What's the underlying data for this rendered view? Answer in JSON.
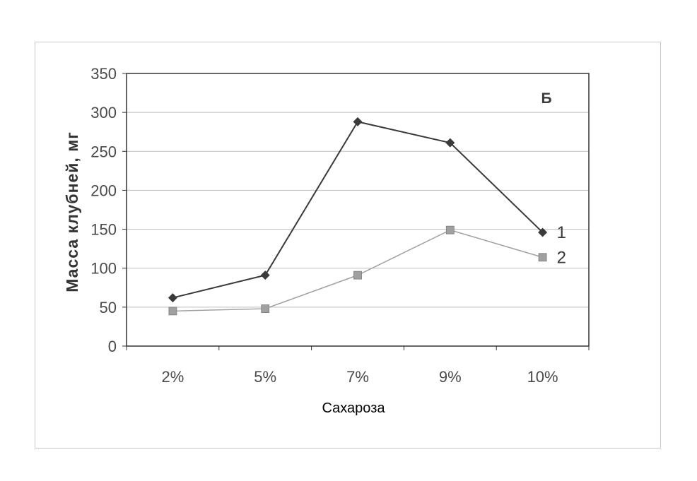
{
  "chart_data": {
    "type": "line",
    "categories": [
      "2%",
      "5%",
      "7%",
      "9%",
      "10%"
    ],
    "series": [
      {
        "name": "1",
        "values": [
          62,
          91,
          288,
          261,
          146
        ],
        "color": "#3a3a3a",
        "marker": "diamond"
      },
      {
        "name": "2",
        "values": [
          45,
          48,
          91,
          149,
          114
        ],
        "color": "#a0a0a0",
        "marker": "square"
      }
    ],
    "title": "",
    "panel_label": "Б",
    "xlabel": "Сахароза",
    "ylabel": "Масса клубней, мг",
    "ylim": [
      0,
      350
    ],
    "yticks": [
      "0",
      "50",
      "100",
      "150",
      "200",
      "250",
      "300",
      "350"
    ],
    "grid": true,
    "legend": "series labels at line ends (right)"
  }
}
